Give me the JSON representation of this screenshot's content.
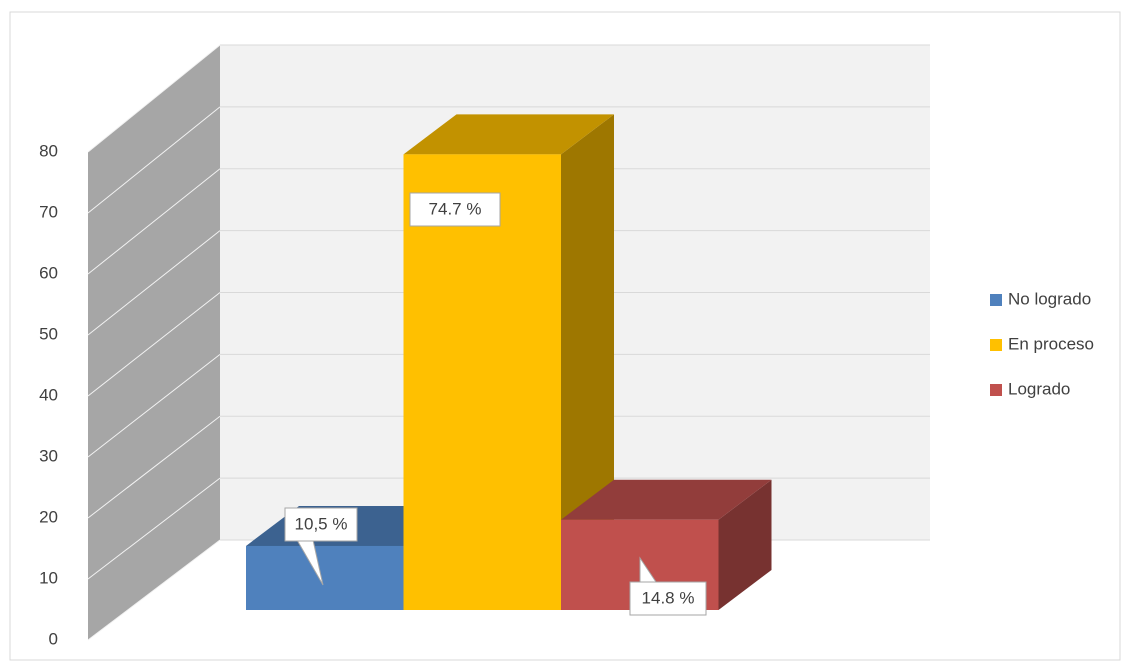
{
  "chart_data": {
    "type": "bar3d",
    "categories": [
      null
    ],
    "series": [
      {
        "name": "No logrado",
        "color": "#4f81bd",
        "values": [
          10.5
        ],
        "value_labels": [
          "10,5 %"
        ]
      },
      {
        "name": "En proceso",
        "color": "#ffc000",
        "values": [
          74.7
        ],
        "value_labels": [
          "74.7 %"
        ]
      },
      {
        "name": "Logrado",
        "color": "#c0504d",
        "values": [
          14.8
        ],
        "value_labels": [
          "14.8 %"
        ]
      }
    ],
    "ylim": [
      0,
      80
    ],
    "yticks": [
      0,
      10,
      20,
      30,
      40,
      50,
      60,
      70,
      80
    ],
    "grid": true,
    "legend": "right"
  }
}
